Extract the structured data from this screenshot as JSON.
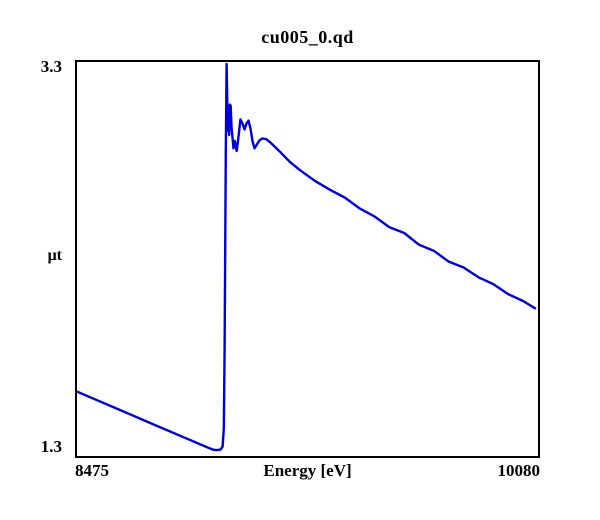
{
  "figure": {
    "background_color": "#ffffff",
    "text_color": "#000000"
  },
  "chart_data": {
    "type": "line",
    "title": "cu005_0.qd",
    "xlabel": "Energy [eV]",
    "ylabel": "μt",
    "xlim": [
      8475,
      10080
    ],
    "ylim": [
      1.3,
      3.3
    ],
    "x_ticks": [
      "8475",
      "10080"
    ],
    "y_ticks": [
      "3.3",
      "1.3"
    ],
    "grid": false,
    "legend": false,
    "line_color": "#0000dd",
    "axis_color": "#000000",
    "series": [
      {
        "name": "cu005_0.qd",
        "points": [
          [
            8475,
            1.627
          ],
          [
            8550,
            1.58
          ],
          [
            8650,
            1.518
          ],
          [
            8750,
            1.455
          ],
          [
            8850,
            1.393
          ],
          [
            8900,
            1.362
          ],
          [
            8930,
            1.343
          ],
          [
            8950,
            1.332
          ],
          [
            8962,
            1.33
          ],
          [
            8975,
            1.333
          ],
          [
            8982,
            1.348
          ],
          [
            8986,
            1.44
          ],
          [
            8989,
            1.84
          ],
          [
            8993,
            2.85
          ],
          [
            8996,
            3.29
          ],
          [
            9000,
            2.95
          ],
          [
            9003,
            2.995
          ],
          [
            9005,
            2.93
          ],
          [
            9007,
            3.084
          ],
          [
            9010,
            3.078
          ],
          [
            9013,
            2.97
          ],
          [
            9020,
            2.862
          ],
          [
            9024,
            2.9
          ],
          [
            9031,
            2.848
          ],
          [
            9038,
            2.93
          ],
          [
            9044,
            3.008
          ],
          [
            9051,
            2.99
          ],
          [
            9058,
            2.958
          ],
          [
            9065,
            2.988
          ],
          [
            9072,
            3.002
          ],
          [
            9079,
            2.962
          ],
          [
            9086,
            2.898
          ],
          [
            9093,
            2.862
          ],
          [
            9100,
            2.878
          ],
          [
            9110,
            2.902
          ],
          [
            9120,
            2.912
          ],
          [
            9134,
            2.908
          ],
          [
            9148,
            2.892
          ],
          [
            9165,
            2.868
          ],
          [
            9183,
            2.842
          ],
          [
            9217,
            2.792
          ],
          [
            9252,
            2.75
          ],
          [
            9303,
            2.697
          ],
          [
            9355,
            2.652
          ],
          [
            9407,
            2.612
          ],
          [
            9459,
            2.557
          ],
          [
            9510,
            2.517
          ],
          [
            9562,
            2.462
          ],
          [
            9614,
            2.432
          ],
          [
            9666,
            2.372
          ],
          [
            9717,
            2.342
          ],
          [
            9769,
            2.287
          ],
          [
            9821,
            2.257
          ],
          [
            9873,
            2.207
          ],
          [
            9925,
            2.172
          ],
          [
            9976,
            2.122
          ],
          [
            10028,
            2.087
          ],
          [
            10070,
            2.05
          ]
        ]
      }
    ]
  }
}
